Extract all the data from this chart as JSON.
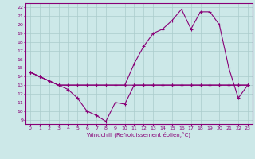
{
  "xlabel": "Windchill (Refroidissement éolien,°C)",
  "background_color": "#cce8e8",
  "line_color": "#880077",
  "grid_color": "#aacccc",
  "xlim": [
    -0.5,
    23.5
  ],
  "ylim": [
    8.5,
    22.5
  ],
  "xticks": [
    0,
    1,
    2,
    3,
    4,
    5,
    6,
    7,
    8,
    9,
    10,
    11,
    12,
    13,
    14,
    15,
    16,
    17,
    18,
    19,
    20,
    21,
    22,
    23
  ],
  "yticks": [
    9,
    10,
    11,
    12,
    13,
    14,
    15,
    16,
    17,
    18,
    19,
    20,
    21,
    22
  ],
  "line1_x": [
    0,
    1,
    2,
    3,
    4,
    5,
    6,
    7,
    8,
    9,
    10,
    11,
    12,
    13,
    14,
    15,
    16,
    17,
    18,
    19,
    20,
    21,
    22,
    23
  ],
  "line1_y": [
    14.5,
    14,
    13.5,
    13,
    12.5,
    11.5,
    10,
    9.5,
    8.8,
    11,
    10.8,
    13,
    13,
    13,
    13,
    13,
    13,
    13,
    13,
    13,
    13,
    13,
    13,
    13
  ],
  "line2_x": [
    0,
    1,
    2,
    3,
    4,
    5,
    6,
    7,
    8,
    9,
    10,
    11,
    12,
    13,
    14,
    15,
    16,
    17,
    18,
    19,
    20,
    21,
    22,
    23
  ],
  "line2_y": [
    14.5,
    14,
    13.5,
    13,
    13,
    13,
    13,
    13,
    13,
    13,
    13,
    13,
    13,
    13,
    13,
    13,
    13,
    13,
    13,
    13,
    13,
    13,
    13,
    13
  ],
  "line3_x": [
    0,
    1,
    2,
    3,
    10,
    11,
    12,
    13,
    14,
    15,
    16,
    17,
    18,
    19,
    20,
    21,
    22,
    23
  ],
  "line3_y": [
    14.5,
    14,
    13.5,
    13,
    13,
    15.5,
    17.5,
    19,
    19.5,
    20.5,
    21.8,
    19.5,
    21.5,
    21.5,
    20,
    15,
    11.5,
    13
  ]
}
